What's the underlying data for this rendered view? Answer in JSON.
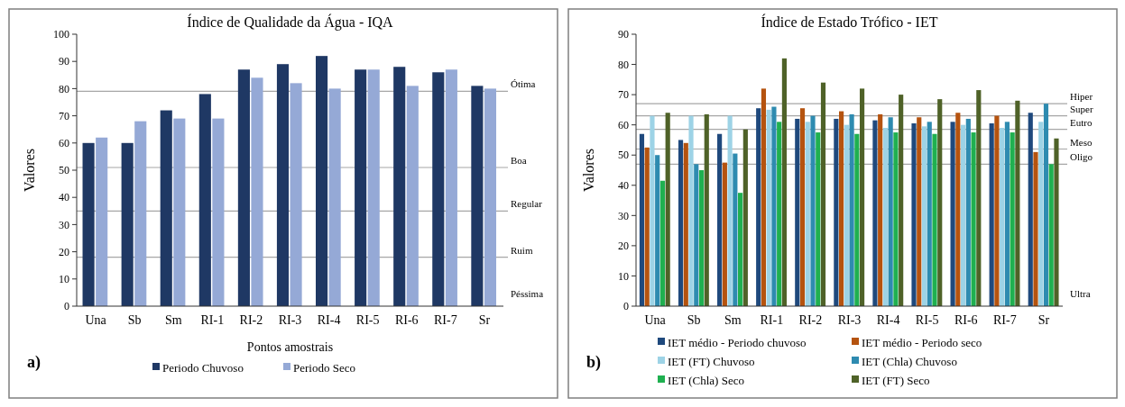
{
  "chart_data": [
    {
      "type": "bar",
      "title": "Índice de Qualidade da Água - IQA",
      "xlabel": "Pontos amostrais",
      "ylabel": "Valores",
      "categories": [
        "Una",
        "Sb",
        "Sm",
        "RI-1",
        "RI-2",
        "RI-3",
        "RI-4",
        "RI-5",
        "RI-6",
        "RI-7",
        "Sr"
      ],
      "series": [
        {
          "name": "Periodo Chuvoso",
          "color": "#1f3864",
          "values": [
            60,
            60,
            72,
            78,
            87,
            89,
            92,
            87,
            88,
            86,
            81
          ]
        },
        {
          "name": "Periodo Seco",
          "color": "#95a9d6",
          "values": [
            62,
            68,
            69,
            69,
            84,
            82,
            80,
            87,
            81,
            87,
            80
          ]
        }
      ],
      "ylim": [
        0,
        100
      ],
      "yticks": [
        0,
        10,
        20,
        30,
        40,
        50,
        60,
        70,
        80,
        90,
        100
      ],
      "grid": false,
      "legend": "bottom",
      "ref_lines": [
        {
          "axis": "y",
          "value": 79,
          "label": "Ótima",
          "color": "#a6a6a6"
        },
        {
          "axis": "y",
          "value": 51,
          "label": "Boa",
          "color": "#a6a6a6"
        },
        {
          "axis": "y",
          "value": 35,
          "label": "Regular",
          "color": "#a6a6a6"
        },
        {
          "axis": "y",
          "value": 18,
          "label": "Ruim",
          "color": "#a6a6a6"
        }
      ],
      "annotations": [
        "Péssima",
        "a)"
      ]
    },
    {
      "type": "bar",
      "title": "Índice de Estado Trófico - IET",
      "ylabel": "Valores",
      "categories": [
        "Una",
        "Sb",
        "Sm",
        "RI-1",
        "RI-2",
        "RI-3",
        "RI-4",
        "RI-5",
        "RI-6",
        "RI-7",
        "Sr"
      ],
      "series": [
        {
          "name": "IET médio - Periodo chuvoso",
          "color": "#1f497d",
          "values": [
            57,
            55,
            57,
            65.5,
            62,
            62,
            61.5,
            60.5,
            61,
            60.5,
            64
          ]
        },
        {
          "name": "IET médio - Periodo seco",
          "color": "#b5530f",
          "values": [
            52.5,
            54,
            47.5,
            72,
            65.5,
            64.5,
            63.5,
            62.5,
            64,
            63,
            51
          ]
        },
        {
          "name": "IET (FT) Chuvoso",
          "color": "#9dd3e6",
          "values": [
            63,
            63,
            63,
            65,
            61,
            60,
            59,
            59.5,
            60,
            59,
            61
          ]
        },
        {
          "name": "IET (Chla) Chuvoso",
          "color": "#2e8bb0",
          "values": [
            50,
            47,
            50.5,
            66,
            63,
            63.5,
            62.5,
            61,
            62,
            61,
            67
          ]
        },
        {
          "name": "IET (Chla) Seco",
          "color": "#1fb050",
          "values": [
            41.5,
            45,
            37.5,
            61,
            57.5,
            57,
            57.5,
            57,
            57.5,
            57.5,
            47
          ]
        },
        {
          "name": "IET (FT) Seco",
          "color": "#4f6228",
          "values": [
            64,
            63.5,
            58.5,
            82,
            74,
            72,
            70,
            68.5,
            71.5,
            68,
            55.5
          ]
        }
      ],
      "ylim": [
        0,
        90
      ],
      "yticks": [
        0,
        10,
        20,
        30,
        40,
        50,
        60,
        70,
        80,
        90
      ],
      "grid": false,
      "legend": "bottom",
      "ref_lines": [
        {
          "axis": "y",
          "value": 67,
          "label": "Hiper",
          "color": "#a6a6a6"
        },
        {
          "axis": "y",
          "value": 63,
          "label": "Super",
          "color": "#a6a6a6"
        },
        {
          "axis": "y",
          "value": 58.5,
          "label": "Eutro",
          "color": "#a6a6a6"
        },
        {
          "axis": "y",
          "value": 52,
          "label": "Meso",
          "color": "#a6a6a6"
        },
        {
          "axis": "y",
          "value": 47,
          "label": "Oligo",
          "color": "#a6a6a6"
        }
      ],
      "annotations": [
        "Ultra",
        "b)"
      ]
    }
  ]
}
